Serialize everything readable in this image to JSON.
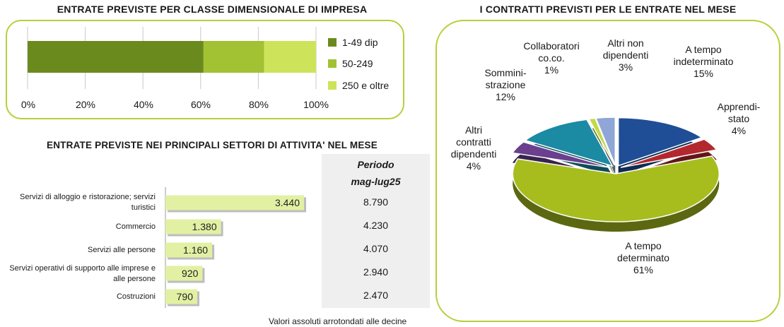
{
  "titles": {
    "classe": "ENTRATE PREVISTE PER CLASSE DIMENSIONALE DI IMPRESA",
    "contratti": "I CONTRATTI PREVISTI PER LE ENTRATE NEL MESE",
    "settori": "ENTRATE PREVISTE NEI PRINCIPALI SETTORI DI ATTIVITA' NEL MESE"
  },
  "period": {
    "line1": "Periodo",
    "line2": "mag-lug25"
  },
  "note": "Valori assoluti arrotondati alle decine",
  "colors": {
    "dark_green": "#6b8a1e",
    "mid_green": "#a2c133",
    "light_green": "#cde35a",
    "bar_green": "#e2f0a3",
    "panel_border": "#b8cf3a"
  },
  "chart_data": [
    {
      "type": "bar",
      "orientation": "horizontal-stacked-100",
      "title": "ENTRATE PREVISTE PER CLASSE DIMENSIONALE DI IMPRESA",
      "series": [
        {
          "name": "1-49 dip",
          "value": 61,
          "color": "#6b8a1e"
        },
        {
          "name": "50-249",
          "value": 21,
          "color": "#a2c133"
        },
        {
          "name": "250 e oltre",
          "value": 18,
          "color": "#cde35a"
        }
      ],
      "xticks": [
        "0%",
        "20%",
        "40%",
        "60%",
        "80%",
        "100%"
      ],
      "xlim": [
        0,
        100
      ],
      "grid": true,
      "legend": "right"
    },
    {
      "type": "bar",
      "orientation": "horizontal",
      "title": "ENTRATE PREVISTE NEI PRINCIPALI SETTORI DI ATTIVITA' NEL MESE",
      "categories": [
        "Servizi di alloggio e ristorazione; servizi turistici",
        "Commercio",
        "Servizi alle persone",
        "Servizi operativi di supporto alle imprese e alle persone",
        "Costruzioni"
      ],
      "values": [
        3440,
        1380,
        1160,
        920,
        790
      ],
      "value_labels": [
        "3.440",
        "1.380",
        "1.160",
        "920",
        "790"
      ],
      "period_values": [
        "8.790",
        "4.230",
        "4.070",
        "2.940",
        "2.470"
      ],
      "period_header": "Periodo mag-lug25"
    },
    {
      "type": "pie",
      "title": "I CONTRATTI PREVISTI PER LE ENTRATE NEL MESE",
      "slices": [
        {
          "name": "A tempo indeterminato",
          "value": 15,
          "color": "#1f4e96"
        },
        {
          "name": "Apprendistato",
          "value": 4,
          "color": "#b3282e"
        },
        {
          "name": "A tempo determinato",
          "value": 61,
          "color": "#a7bd1e"
        },
        {
          "name": "Altri contratti dipendenti",
          "value": 4,
          "color": "#6a3f8e"
        },
        {
          "name": "Somministrazione",
          "value": 12,
          "color": "#1b8aa3"
        },
        {
          "name": "Collaboratori co.co.",
          "value": 1,
          "color": "#c3d946"
        },
        {
          "name": "Altri non dipendenti",
          "value": 3,
          "color": "#8fa6d6"
        }
      ],
      "labels": {
        "indeterminato": [
          "A tempo",
          "indeterminato",
          "15%"
        ],
        "apprendistato": [
          "Apprendi-",
          "stato",
          "4%"
        ],
        "determinato": [
          "A tempo",
          "determinato",
          "61%"
        ],
        "altri_contratti": [
          "Altri",
          "contratti",
          "dipendenti",
          "4%"
        ],
        "somministrazione": [
          "Sommini-",
          "strazione",
          "12%"
        ],
        "collaboratori": [
          "Collaboratori",
          "co.co.",
          "1%"
        ],
        "altri_non": [
          "Altri non",
          "dipendenti",
          "3%"
        ]
      }
    }
  ]
}
